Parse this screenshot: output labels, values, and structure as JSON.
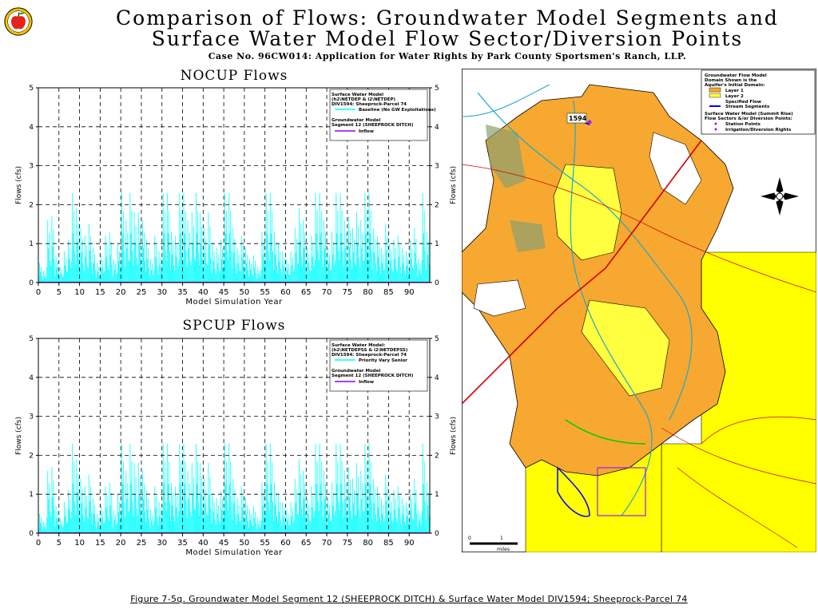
{
  "header": {
    "title_line1": "Comparison of Flows: Groundwater Model Segments and",
    "title_line2": "Surface Water Model Flow Sector/Diversion Points",
    "subtitle": "Case No. 96CW014: Application for Water Rights by Park County Sportsmen's Ranch, LLP."
  },
  "logo": {
    "icon": "apple-logo-icon",
    "fill": "#e8231c",
    "ring": "#f2c200"
  },
  "colors": {
    "flow": "#00ffff",
    "inflow": "#8b00ff",
    "orange": "#f7a830",
    "yellow": "#ffff00",
    "light_yellow": "#ffff80",
    "stream": "#0000ff",
    "road": "#e00000"
  },
  "chart_data": [
    {
      "type": "bar",
      "title": "NOCUP Flows",
      "xlabel": "Model Simulation Year",
      "ylabel": "Flows (cfs)",
      "xlim": [
        0,
        95
      ],
      "ylim": [
        0,
        5
      ],
      "xticks": [
        "0",
        "5",
        "10",
        "15",
        "20",
        "25",
        "30",
        "35",
        "40",
        "45",
        "50",
        "55",
        "60",
        "65",
        "70",
        "75",
        "80",
        "85",
        "90"
      ],
      "yticks": [
        "0",
        "1",
        "2",
        "3",
        "4",
        "5"
      ],
      "legend": {
        "sw_title": "Surface Water Model",
        "sw_paths": "(h2\\NETDEP & i2\\NETDEP)",
        "sw_point": "DIV1594: Sheeprock-Parcel 74",
        "sw_series": "Baseline (No GW Exploitations)",
        "gw_title": "Groundwater Model",
        "gw_segment": "Segment 12 (SHEEPROCK DITCH)",
        "gw_series": "Inflow"
      },
      "series": [
        {
          "name": "Baseline (No GW Exploitations)",
          "color": "#00ffff",
          "year_peaks": [
            0.5,
            0.3,
            1.6,
            1.7,
            0.7,
            0.4,
            0.8,
            1.1,
            2.3,
            1.9,
            1.4,
            1.2,
            1.5,
            0.9,
            0.5,
            0.7,
            1.2,
            1.3,
            0.6,
            1.0,
            2.3,
            1.6,
            2.3,
            1.8,
            1.8,
            1.6,
            1.1,
            0.6,
            1.2,
            0.8,
            2.3,
            2.3,
            1.3,
            1.2,
            2.3,
            2.3,
            1.6,
            1.8,
            2.3,
            1.8,
            1.4,
            1.8,
            1.0,
            0.9,
            1.1,
            2.3,
            2.3,
            1.4,
            0.9,
            1.2,
            0.9,
            0.6,
            0.7,
            0.4,
            1.3,
            2.3,
            2.3,
            1.3,
            1.0,
            0.8,
            0.6,
            0.8,
            1.4,
            1.9,
            1.6,
            0.9,
            1.2,
            2.3,
            2.3,
            1.6,
            0.9,
            1.3,
            2.3,
            2.3,
            1.6,
            1.7,
            1.4,
            1.8,
            1.6,
            2.3,
            2.3,
            1.4,
            1.2,
            0.9,
            1.5,
            1.0,
            1.1,
            1.2,
            0.9,
            0.8,
            1.1,
            1.4,
            0.6,
            2.3,
            1.3
          ]
        }
      ]
    },
    {
      "type": "bar",
      "title": "SPCUP Flows",
      "xlabel": "Model Simulation Year",
      "ylabel": "Flows (cfs)",
      "xlim": [
        0,
        95
      ],
      "ylim": [
        0,
        5
      ],
      "xticks": [
        "0",
        "5",
        "10",
        "15",
        "20",
        "25",
        "30",
        "35",
        "40",
        "45",
        "50",
        "55",
        "60",
        "65",
        "70",
        "75",
        "80",
        "85",
        "90"
      ],
      "yticks": [
        "0",
        "1",
        "2",
        "3",
        "4",
        "5"
      ],
      "legend": {
        "sw_title": "Surface Water Model:",
        "sw_paths": "(h2\\NETDEPSS & i2\\NETDEPSS)",
        "sw_point": "DIV1594: Sheeprock-Parcel 74",
        "sw_series": "Priority Vary Senior",
        "gw_title": "Groundwater Model",
        "gw_segment": "Segment 12 (SHEEPROCK DITCH)",
        "gw_series": "Inflow"
      },
      "series": [
        {
          "name": "Priority Vary Senior",
          "color": "#00ffff",
          "year_peaks": [
            0.5,
            0.3,
            1.6,
            1.7,
            0.7,
            0.4,
            0.8,
            1.1,
            2.3,
            1.9,
            1.4,
            1.2,
            1.5,
            0.9,
            0.5,
            0.7,
            1.2,
            1.3,
            0.6,
            1.0,
            2.3,
            1.6,
            2.3,
            1.8,
            1.8,
            1.6,
            1.1,
            0.6,
            1.2,
            0.8,
            2.3,
            2.3,
            1.3,
            1.2,
            2.3,
            2.3,
            1.6,
            1.8,
            2.3,
            1.8,
            1.4,
            1.8,
            1.0,
            0.9,
            1.1,
            2.3,
            2.3,
            1.4,
            0.9,
            1.2,
            0.9,
            0.6,
            0.7,
            0.4,
            1.3,
            2.3,
            2.3,
            1.3,
            1.0,
            0.8,
            0.6,
            0.8,
            1.4,
            1.9,
            1.6,
            0.9,
            1.2,
            2.3,
            2.3,
            1.6,
            0.9,
            1.3,
            2.3,
            2.3,
            1.6,
            1.7,
            1.4,
            1.8,
            1.6,
            2.3,
            2.3,
            1.4,
            1.2,
            0.9,
            1.5,
            1.0,
            1.1,
            1.2,
            0.9,
            0.8,
            1.1,
            1.4,
            0.6,
            2.3,
            1.3
          ]
        }
      ]
    }
  ],
  "map": {
    "label_1594": "1594",
    "legend": {
      "line1": "Groundwater Flow Model",
      "line2": "Domain Shown is the",
      "line3": "Aquifer's Initial Domain:",
      "layer1": "Layer 1",
      "layer2": "Layer 2",
      "specified_flow": "Specified Flow",
      "stream_segments": "Stream Segments",
      "sw_line1": "Surface Water Model (Summit Rise)",
      "sw_line2": "Flow Sectors &/or Diversion Points:",
      "station_points": "Station Points",
      "irrigation": "Irrigation/Diversion Rights"
    },
    "compass_icon": "compass-rose-icon",
    "scale": {
      "zero": "0",
      "one": "1",
      "unit": "miles"
    }
  },
  "caption": "Figure 7-5q. Groundwater Model Segment 12 (SHEEPROCK DITCH) & Surface Water Model DIV1594; Sheeprock-Parcel 74"
}
